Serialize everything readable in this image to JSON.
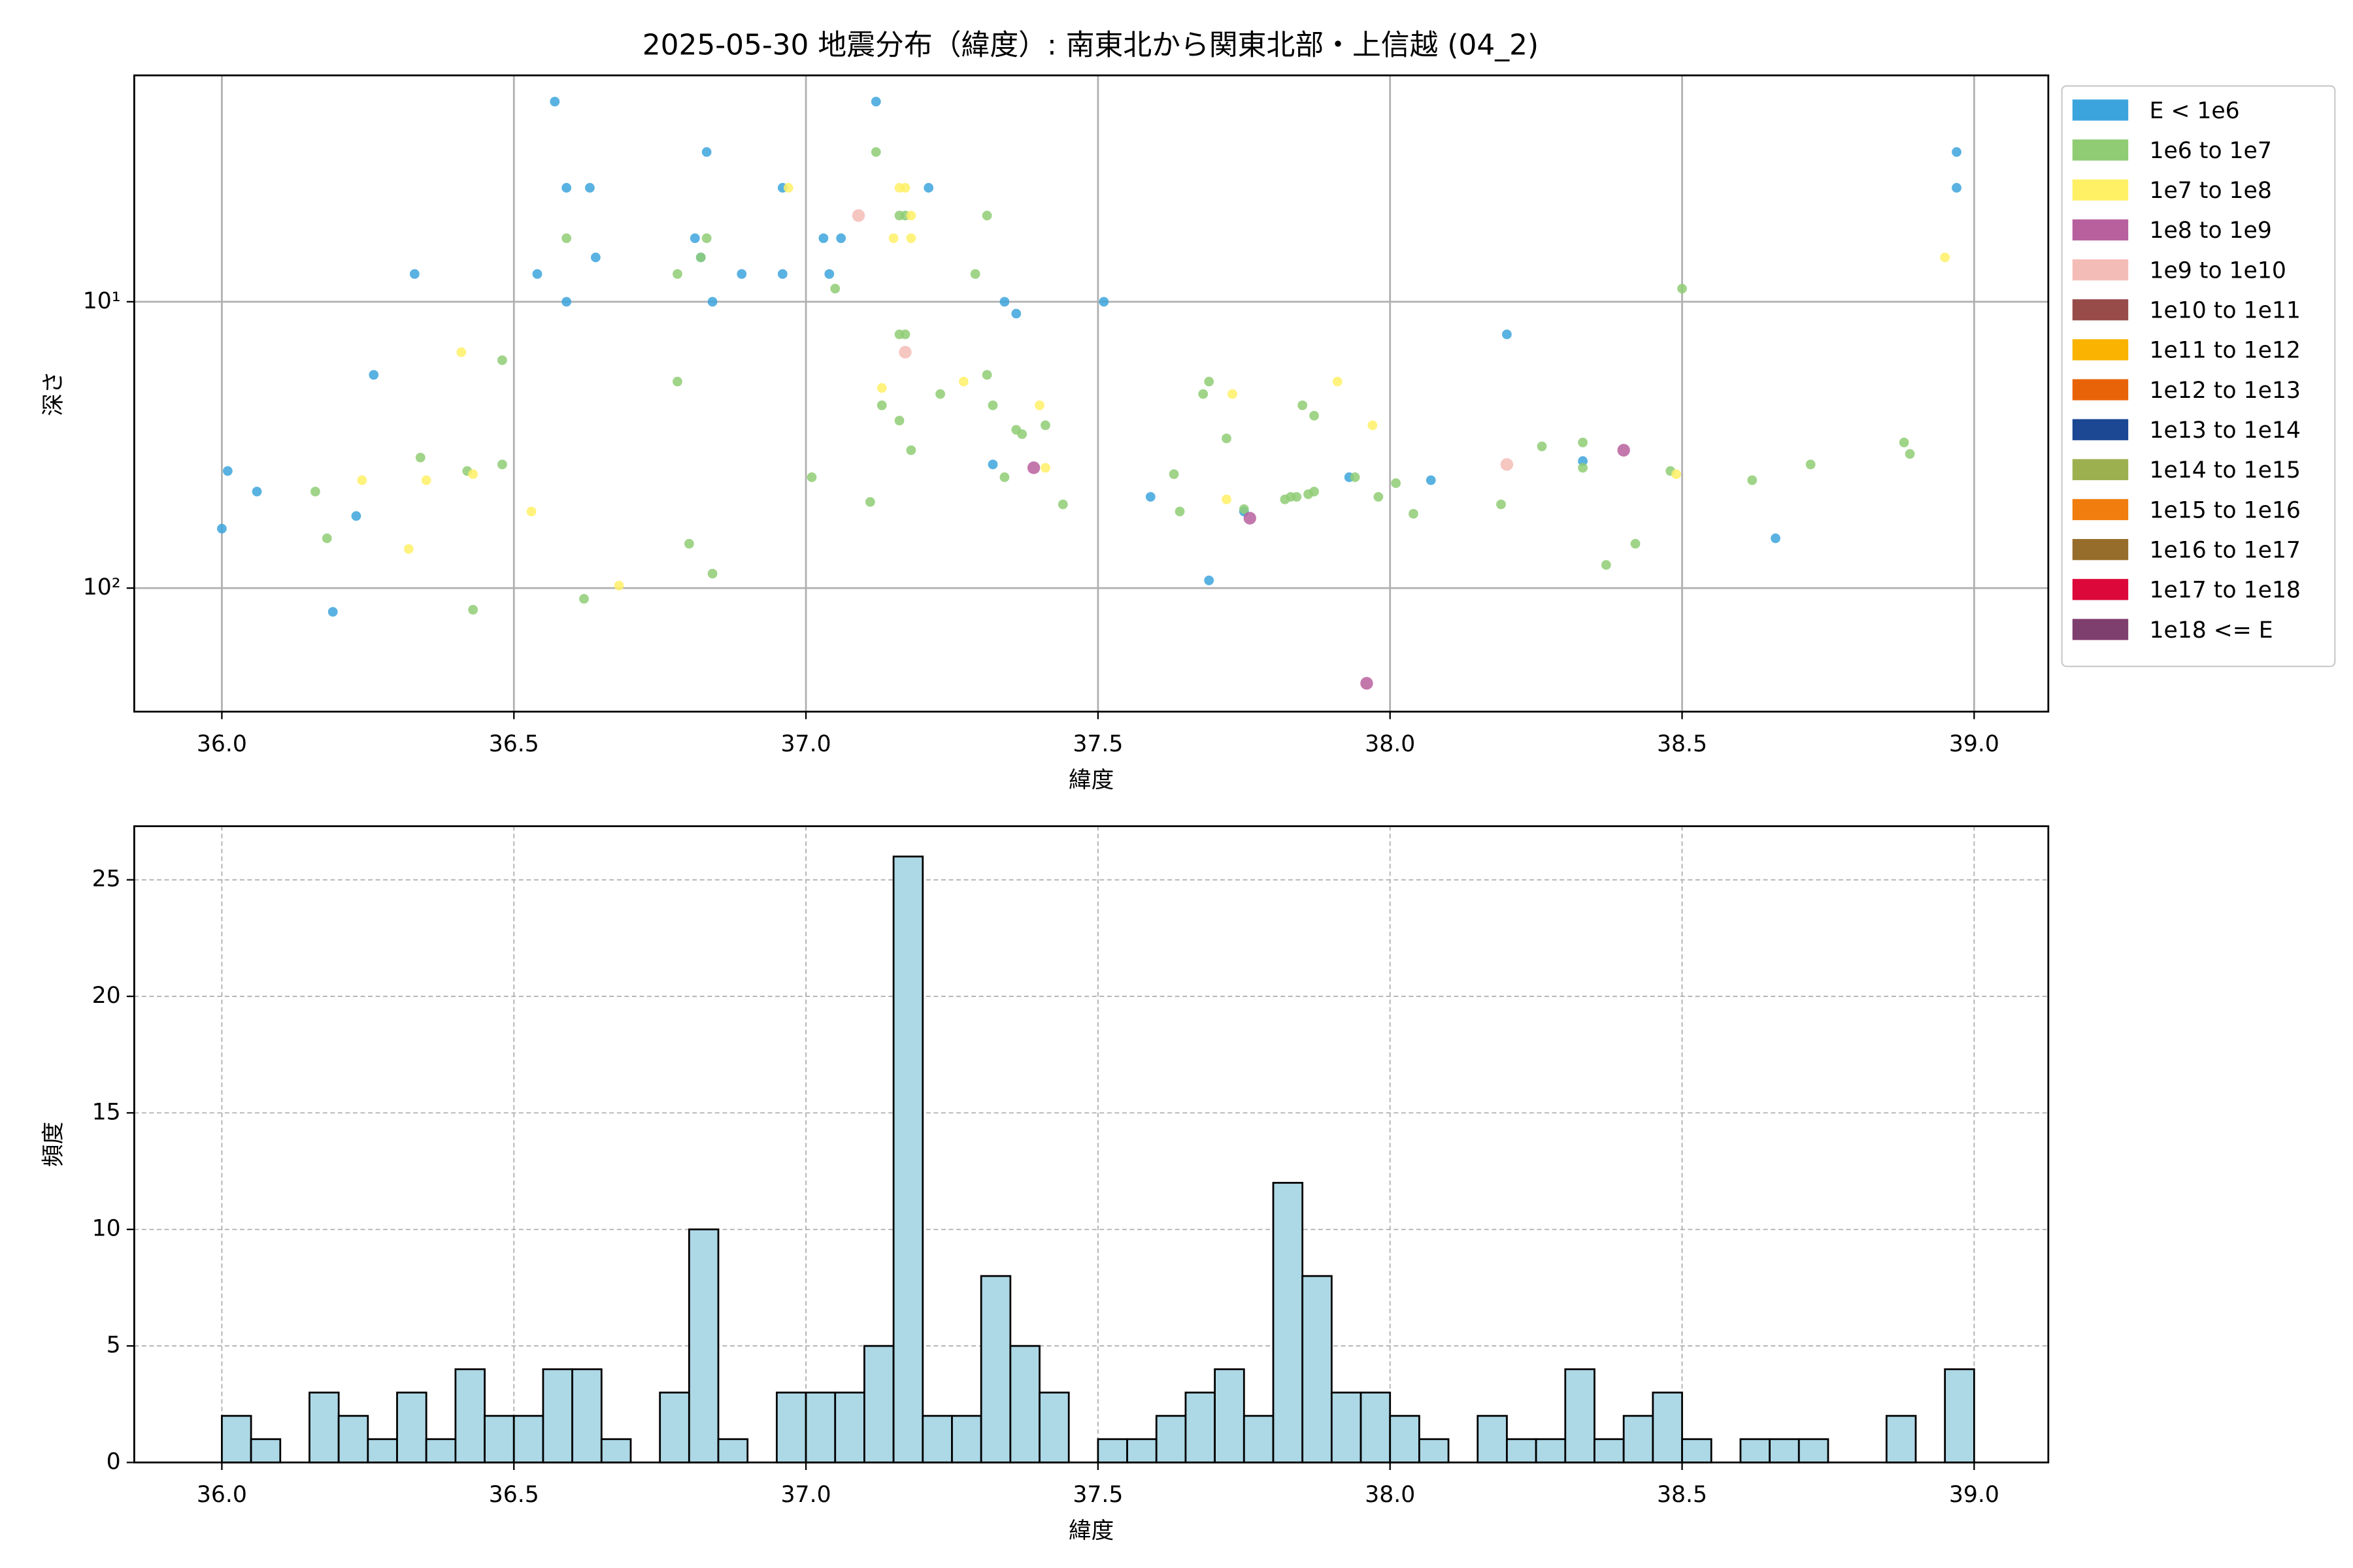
{
  "chart_data": [
    {
      "type": "scatter",
      "title": "2025-05-30 地震分布（緯度）: 南東北から関東北部・上信越 (04_2)",
      "xlabel": "緯度",
      "ylabel": "深さ",
      "xlim": [
        35.85,
        39.127
      ],
      "ylim": [
        1.62,
        270
      ],
      "yscale": "log",
      "y_inverted": true,
      "grid": true,
      "legend": "outside upper right",
      "xticks": [
        {
          "value": 36,
          "label": "36.0"
        },
        {
          "value": 36.5,
          "label": "36.5"
        },
        {
          "value": 37,
          "label": "37.0"
        },
        {
          "value": 37.5,
          "label": "37.5"
        },
        {
          "value": 38,
          "label": "38.0"
        },
        {
          "value": 38.5,
          "label": "38.5"
        },
        {
          "value": 39,
          "label": "39.0"
        }
      ],
      "yticks": [
        {
          "value": 10,
          "label": "10¹"
        },
        {
          "value": 100,
          "label": "10²"
        }
      ],
      "series": [
        {
          "name": "E < 1e6",
          "color": "#3ca4dc",
          "x": [
            36.0,
            36.01,
            36.06,
            36.19,
            36.23,
            36.26,
            36.33,
            36.57,
            36.59,
            36.63,
            36.59,
            36.54,
            36.64,
            36.81,
            36.82,
            36.83,
            36.84,
            36.89,
            36.96,
            36.96,
            37.03,
            37.04,
            37.06,
            37.12,
            37.21,
            37.34,
            37.36,
            37.32,
            37.51,
            37.59,
            37.69,
            37.75,
            37.93,
            38.07,
            38.2,
            38.33,
            38.66,
            38.97,
            38.97
          ],
          "values": [
            62,
            39,
            46,
            121,
            56,
            18,
            8,
            2,
            4,
            4,
            10,
            8,
            7,
            6,
            7,
            3,
            10,
            8,
            4,
            8,
            6,
            8,
            6,
            2,
            4,
            10,
            11,
            37,
            10,
            48,
            94,
            54,
            41,
            42,
            13,
            36,
            67,
            3,
            4
          ]
        },
        {
          "name": "1e6 to 1e7",
          "color": "#8fcc74",
          "x": [
            36.16,
            36.18,
            36.34,
            36.42,
            36.48,
            36.48,
            36.43,
            36.62,
            36.59,
            36.78,
            36.78,
            36.8,
            36.84,
            36.83,
            36.82,
            37.01,
            37.05,
            37.11,
            37.12,
            37.13,
            37.16,
            37.17,
            37.16,
            37.18,
            37.16,
            37.17,
            37.23,
            37.29,
            37.31,
            37.31,
            37.32,
            37.34,
            37.37,
            37.36,
            37.41,
            37.44,
            37.63,
            37.64,
            37.68,
            37.69,
            37.72,
            37.75,
            37.82,
            37.83,
            37.84,
            37.86,
            37.87,
            37.85,
            37.87,
            37.94,
            37.98,
            38.01,
            38.04,
            38.19,
            38.26,
            38.33,
            38.33,
            38.37,
            38.42,
            38.48,
            38.5,
            38.62,
            38.72,
            38.88,
            38.89
          ],
          "values": [
            46,
            67,
            35,
            39,
            16,
            37,
            119,
            109,
            6,
            8,
            19,
            70,
            89,
            6,
            7,
            41,
            9,
            50,
            3,
            23,
            13,
            13,
            26,
            33,
            5,
            5,
            21,
            8,
            5,
            18,
            23,
            41,
            29,
            28,
            27,
            51,
            40,
            54,
            21,
            19,
            30,
            53,
            49,
            48,
            48,
            47,
            46,
            23,
            25,
            41,
            48,
            43,
            55,
            51,
            32,
            31,
            38,
            83,
            70,
            39,
            9,
            42,
            37,
            31,
            34
          ]
        },
        {
          "name": "1e7 to 1e8",
          "color": "#fff066",
          "x": [
            36.24,
            36.32,
            36.35,
            36.41,
            36.43,
            36.53,
            36.68,
            36.97,
            37.13,
            37.15,
            37.16,
            37.17,
            37.18,
            37.18,
            37.27,
            37.4,
            37.41,
            37.73,
            37.72,
            37.91,
            37.97,
            38.49,
            38.95
          ],
          "values": [
            42,
            73,
            42,
            15,
            40,
            54,
            98,
            4,
            20,
            6,
            4,
            4,
            6,
            5,
            19,
            23,
            38,
            21,
            49,
            19,
            27,
            40,
            7
          ]
        },
        {
          "name": "1e8 to 1e9",
          "color": "#b8609e",
          "x": [
            37.39,
            37.76,
            38.4,
            37.96
          ],
          "values": [
            38,
            57,
            33,
            215
          ]
        },
        {
          "name": "1e9 to 1e10",
          "color": "#f4bcb6",
          "x": [
            37.09,
            37.17,
            38.2
          ],
          "values": [
            5,
            15,
            37
          ]
        },
        {
          "name": "1e10 to 1e11",
          "color": "#974c4a",
          "x": [],
          "values": []
        },
        {
          "name": "1e11 to 1e12",
          "color": "#f9b300",
          "x": [],
          "values": []
        },
        {
          "name": "1e12 to 1e13",
          "color": "#e86308",
          "x": [],
          "values": []
        },
        {
          "name": "1e13 to 1e14",
          "color": "#1b4793",
          "x": [],
          "values": []
        },
        {
          "name": "1e14 to 1e15",
          "color": "#9db050",
          "x": [],
          "values": []
        },
        {
          "name": "1e15 to 1e16",
          "color": "#f07d0e",
          "x": [],
          "values": []
        },
        {
          "name": "1e16 to 1e17",
          "color": "#976d2b",
          "x": [],
          "values": []
        },
        {
          "name": "1e17 to 1e18",
          "color": "#dc0839",
          "x": [],
          "values": []
        },
        {
          "name": "1e18 <= E",
          "color": "#7f3f6e",
          "x": [],
          "values": []
        }
      ]
    },
    {
      "type": "histogram",
      "xlabel": "緯度",
      "ylabel": "頻度",
      "xlim": [
        35.85,
        39.127
      ],
      "ylim": [
        0,
        27.3
      ],
      "grid": "dashed",
      "color": "#add8e6",
      "edgecolor": "#000000",
      "xticks": [
        {
          "value": 36,
          "label": "36.0"
        },
        {
          "value": 36.5,
          "label": "36.5"
        },
        {
          "value": 37,
          "label": "37.0"
        },
        {
          "value": 37.5,
          "label": "37.5"
        },
        {
          "value": 38,
          "label": "38.0"
        },
        {
          "value": 38.5,
          "label": "38.5"
        },
        {
          "value": 39,
          "label": "39.0"
        }
      ],
      "yticks": [
        0,
        5,
        10,
        15,
        20,
        25
      ],
      "bins": [
        36.0,
        36.05,
        36.1,
        36.15,
        36.2,
        36.25,
        36.3,
        36.35,
        36.4,
        36.45,
        36.5,
        36.55,
        36.6,
        36.65,
        36.7,
        36.75,
        36.8,
        36.85,
        36.9,
        36.95,
        37.0,
        37.05,
        37.1,
        37.15,
        37.2,
        37.25,
        37.3,
        37.35,
        37.4,
        37.45,
        37.5,
        37.55,
        37.6,
        37.65,
        37.7,
        37.75,
        37.8,
        37.85,
        37.9,
        37.95,
        38.0,
        38.05,
        38.1,
        38.15,
        38.2,
        38.25,
        38.3,
        38.35,
        38.4,
        38.45,
        38.5,
        38.55,
        38.6,
        38.65,
        38.7,
        38.75,
        38.8,
        38.85,
        38.9,
        38.95,
        39.0
      ],
      "values": [
        2,
        1,
        0,
        3,
        2,
        1,
        3,
        1,
        4,
        2,
        2,
        4,
        4,
        1,
        0,
        3,
        10,
        1,
        0,
        3,
        3,
        3,
        5,
        26,
        2,
        2,
        8,
        5,
        3,
        0,
        1,
        1,
        2,
        3,
        4,
        2,
        12,
        8,
        3,
        3,
        2,
        1,
        0,
        2,
        1,
        1,
        4,
        1,
        2,
        3,
        1,
        0,
        1,
        1,
        1,
        0,
        0,
        2,
        0,
        4
      ]
    }
  ]
}
